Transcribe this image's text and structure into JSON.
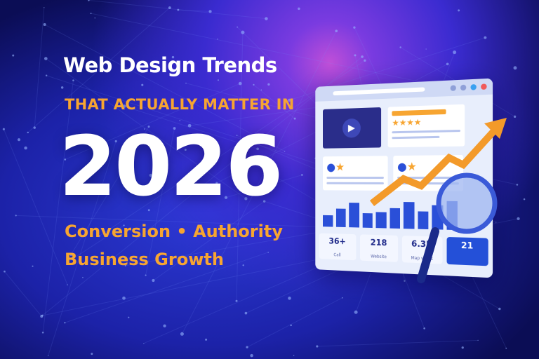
{
  "headline": {
    "line1": "Web Design Trends",
    "line2": "THAT ACTUALLY MATTER IN",
    "year": "2026",
    "tagline1": "Conversion • Authority",
    "tagline2": "Business Growth"
  },
  "mockup": {
    "stats": [
      {
        "value": "36+",
        "label": "Call"
      },
      {
        "value": "218",
        "label": "Website"
      },
      {
        "value": "6.3K",
        "label": "Map views"
      },
      {
        "value": "21",
        "label": ""
      }
    ]
  },
  "colors": {
    "accent": "#f7a531",
    "background": "#1c22a8",
    "bars": "#2a4fd8"
  },
  "icons": [
    "play-icon",
    "star-icon",
    "user-icon",
    "trend-arrow-icon",
    "magnifier-icon"
  ]
}
